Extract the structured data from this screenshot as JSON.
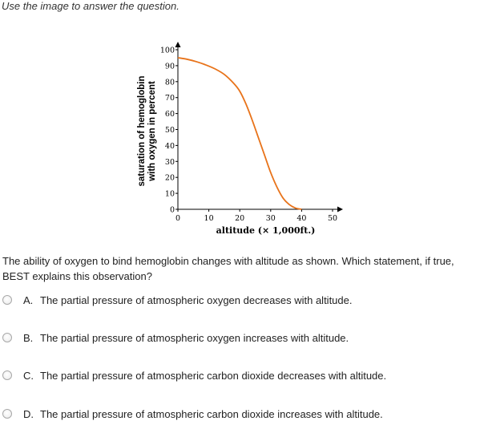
{
  "instruction": "Use the image to answer the question.",
  "question": "The ability of oxygen to bind hemoglobin changes with altitude as shown. Which statement, if true, BEST explains this observation?",
  "options": [
    {
      "letter": "A.",
      "text": "The partial pressure of atmospheric oxygen decreases with altitude."
    },
    {
      "letter": "B.",
      "text": "The partial pressure of atmospheric oxygen increases with altitude."
    },
    {
      "letter": "C.",
      "text": "The partial pressure of atmospheric carbon dioxide decreases with altitude."
    },
    {
      "letter": "D.",
      "text": "The partial pressure of atmospheric carbon dioxide increases with altitude."
    }
  ],
  "chart_data": {
    "type": "line",
    "title": "",
    "xlabel": "altitude (× 1,000ft.)",
    "ylabel_line1": "saturation of hemoglobin",
    "ylabel_line2": "with oxygen in percent",
    "xlim": [
      0,
      50
    ],
    "ylim": [
      0,
      100
    ],
    "xticks": [
      0,
      10,
      20,
      30,
      40,
      50
    ],
    "yticks": [
      0,
      10,
      20,
      30,
      40,
      50,
      60,
      70,
      80,
      90,
      100
    ],
    "grid": false,
    "line_color": "#e8731a",
    "series": [
      {
        "x": [
          0,
          3,
          6,
          9,
          12,
          15,
          18,
          20,
          22,
          24,
          26,
          28,
          30,
          32,
          34,
          36,
          38,
          40
        ],
        "y": [
          95,
          94,
          92.5,
          90.5,
          88,
          84.5,
          79,
          74,
          66,
          56,
          45,
          34,
          23,
          14,
          7,
          3,
          0.8,
          0
        ]
      }
    ]
  }
}
